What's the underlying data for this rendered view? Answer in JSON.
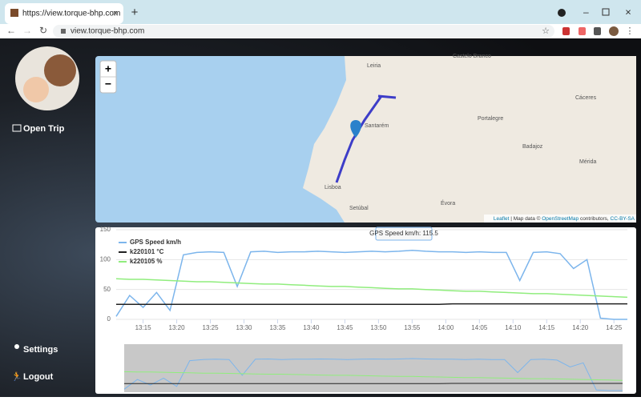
{
  "browser": {
    "tab_title": "https://view.torque-bhp.com",
    "url": "view.torque-bhp.com"
  },
  "sidebar": {
    "open_trip": "Open Trip",
    "settings": "Settings",
    "logout": "Logout"
  },
  "map": {
    "zoom_in": "+",
    "zoom_out": "−",
    "labels": [
      "Leiria",
      "Castelo Branco",
      "Santarém",
      "Portalegre",
      "Cáceres",
      "Badajoz",
      "Mérida",
      "Lisboa",
      "Setúbal",
      "Évora"
    ],
    "attribution": {
      "leaflet": "Leaflet",
      "text1": " | Map data © ",
      "osm": "OpenStreetMap",
      "text2": " contributors, ",
      "license": "CC-BY-SA"
    }
  },
  "chart_data": {
    "type": "line",
    "x": [
      "13:11",
      "13:13",
      "13:15",
      "13:17",
      "13:19",
      "13:21",
      "13:23",
      "13:25",
      "13:27",
      "13:29",
      "13:31",
      "13:33",
      "13:35",
      "13:37",
      "13:39",
      "13:41",
      "13:43",
      "13:45",
      "13:47",
      "13:49",
      "13:51",
      "13:53",
      "13:55",
      "13:57",
      "13:59",
      "14:01",
      "14:03",
      "14:05",
      "14:07",
      "14:09",
      "14:11",
      "14:13",
      "14:15",
      "14:17",
      "14:19",
      "14:21",
      "14:23",
      "14:25",
      "14:27"
    ],
    "xlim": [
      "13:11",
      "14:27"
    ],
    "xticks": [
      "13:15",
      "13:20",
      "13:25",
      "13:30",
      "13:35",
      "13:40",
      "13:45",
      "13:50",
      "13:55",
      "14:00",
      "14:05",
      "14:10",
      "14:15",
      "14:20",
      "14:25"
    ],
    "ylim": [
      0,
      150
    ],
    "yticks": [
      0,
      50,
      100,
      150
    ],
    "grid": true,
    "series": [
      {
        "name": "GPS Speed km/h",
        "color": "#7cb5ec",
        "values": [
          5,
          40,
          20,
          45,
          15,
          108,
          112,
          113,
          112,
          55,
          113,
          114,
          112,
          113,
          113,
          114,
          113,
          112,
          113,
          114,
          113,
          114,
          115.5,
          114,
          113,
          113,
          112,
          113,
          112,
          112,
          65,
          112,
          113,
          110,
          85,
          100,
          2,
          0,
          0
        ]
      },
      {
        "name": "k220101 °C",
        "color": "#222222",
        "values": [
          25,
          25,
          25,
          25,
          25,
          25,
          25,
          25,
          25,
          25,
          25,
          25,
          25,
          25,
          25,
          25,
          25,
          25,
          25,
          25,
          25,
          25,
          25,
          25,
          25,
          26,
          26,
          26,
          26,
          26,
          26,
          26,
          26,
          26,
          26,
          26,
          26,
          26,
          26
        ]
      },
      {
        "name": "k220105 %",
        "color": "#90ed7d",
        "values": [
          68,
          67,
          67,
          66,
          65,
          64,
          63,
          63,
          62,
          61,
          60,
          59,
          59,
          58,
          57,
          56,
          55,
          55,
          54,
          53,
          52,
          51,
          51,
          50,
          49,
          48,
          47,
          47,
          46,
          45,
          44,
          43,
          43,
          42,
          41,
          40,
          39,
          38,
          37
        ]
      }
    ],
    "tooltip": "GPS Speed km/h: 115.5"
  }
}
